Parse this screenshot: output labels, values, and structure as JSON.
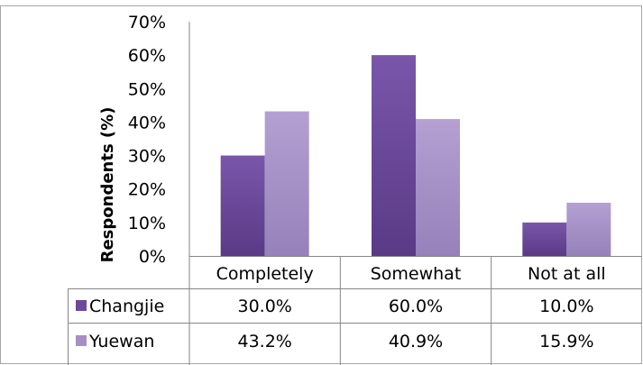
{
  "chart_data": {
    "type": "bar",
    "ylabel": "Respondents (%)",
    "categories": [
      "Completely",
      "Somewhat",
      "Not at all"
    ],
    "y_ticks": [
      "0%",
      "10%",
      "20%",
      "30%",
      "40%",
      "50%",
      "60%",
      "70%"
    ],
    "ylim": [
      0,
      70
    ],
    "grid": false,
    "legend": "data-table",
    "series": [
      {
        "name": "Changjie",
        "values": [
          30.0,
          60.0,
          10.0
        ],
        "labels": [
          "30.0%",
          "60.0%",
          "10.0%"
        ],
        "color": "#6b4a9a"
      },
      {
        "name": "Yuewan",
        "values": [
          43.2,
          40.9,
          15.9
        ],
        "labels": [
          "43.2%",
          "40.9%",
          "15.9%"
        ],
        "color": "#a68fc6"
      }
    ]
  }
}
